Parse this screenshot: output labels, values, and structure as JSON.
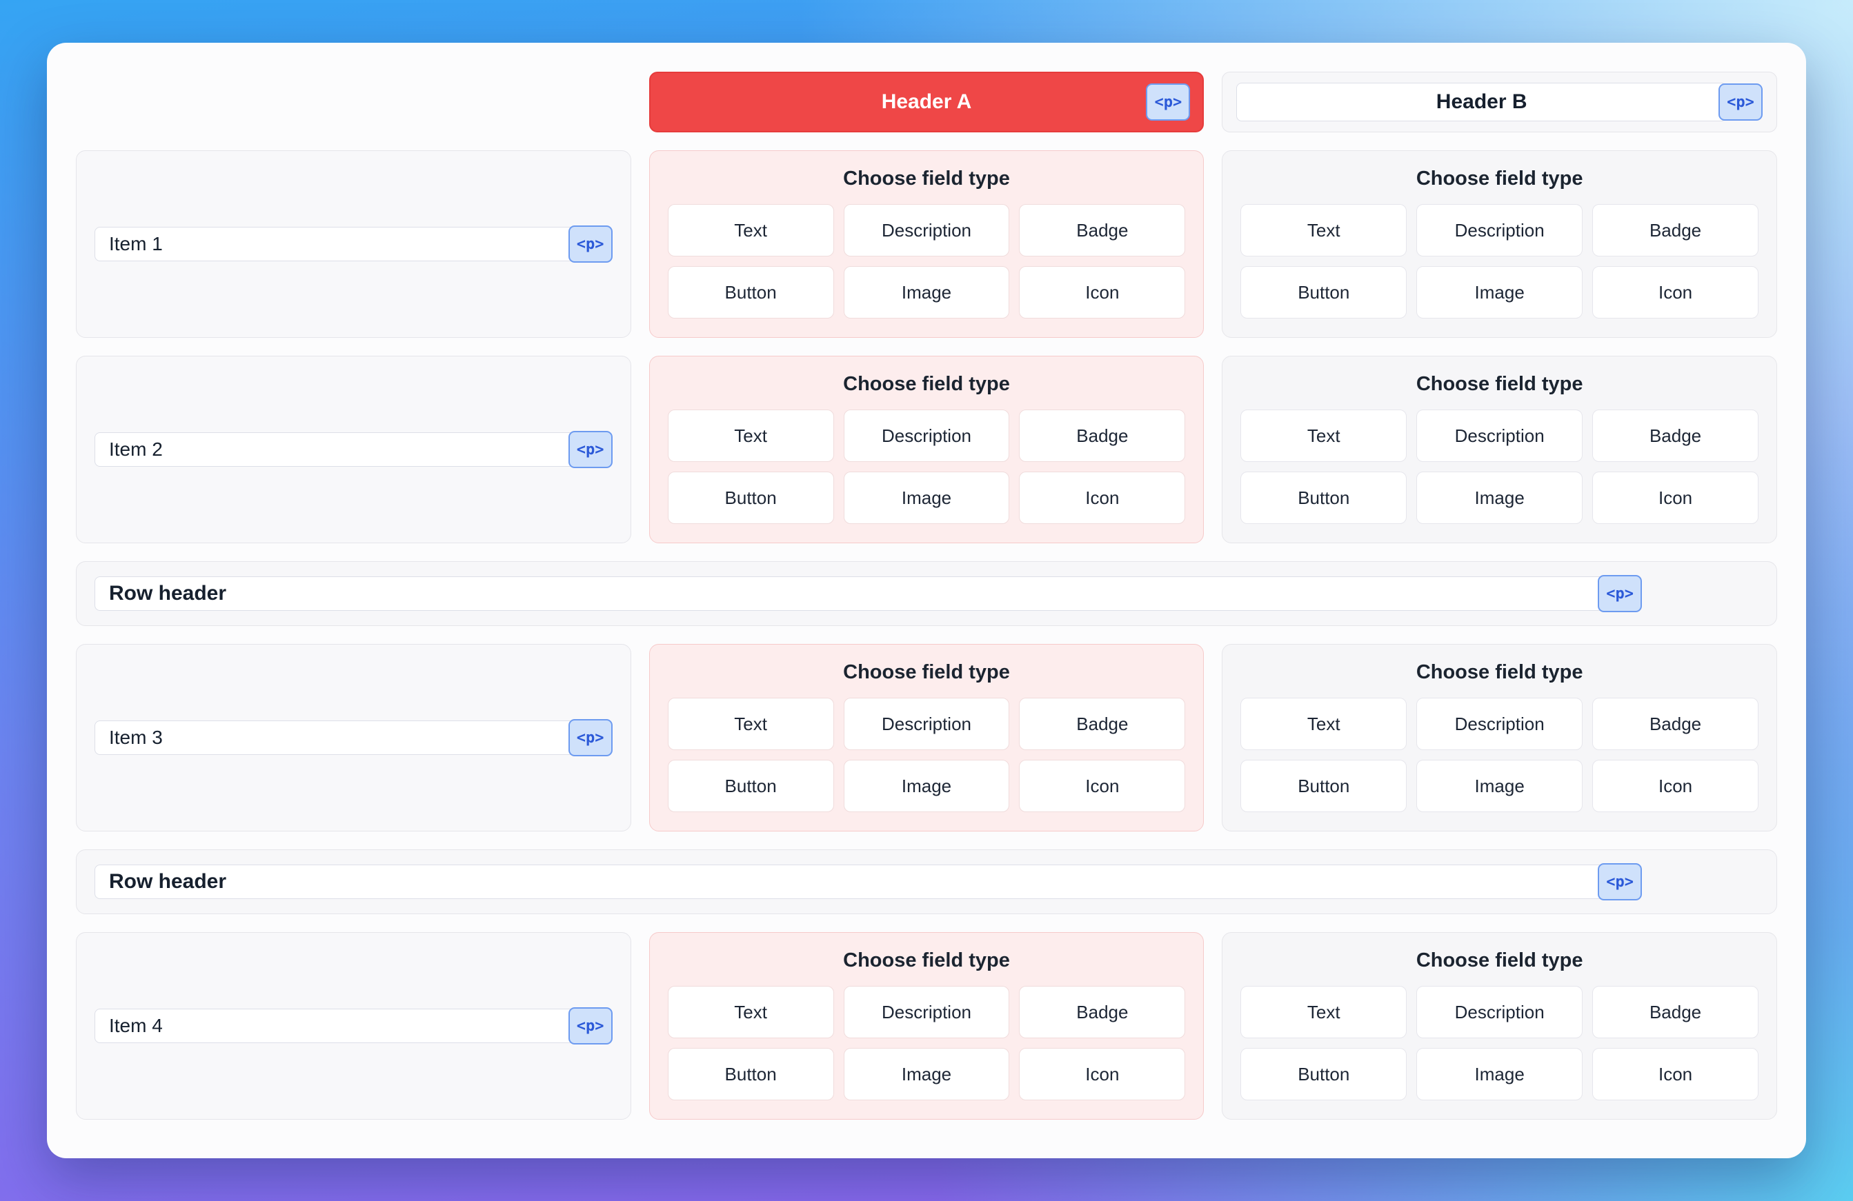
{
  "badge": "<p>",
  "headers": {
    "a": "Header A",
    "b": "Header B"
  },
  "items": [
    {
      "label": "Item 1"
    },
    {
      "label": "Item 2"
    },
    {
      "label": "Item 3"
    },
    {
      "label": "Item 4"
    }
  ],
  "row_headers": [
    {
      "label": "Row header"
    },
    {
      "label": "Row header"
    }
  ],
  "field_chooser": {
    "title": "Choose field type",
    "options": [
      "Text",
      "Description",
      "Badge",
      "Button",
      "Image",
      "Icon"
    ]
  },
  "colors": {
    "header_a_bg": "#ef4747",
    "pink_card_bg": "#fdeded",
    "gray_card_bg": "#f6f6f8",
    "badge_bg": "#cfe1fb",
    "badge_border": "#6d9bf0",
    "badge_text": "#2b59d8"
  }
}
